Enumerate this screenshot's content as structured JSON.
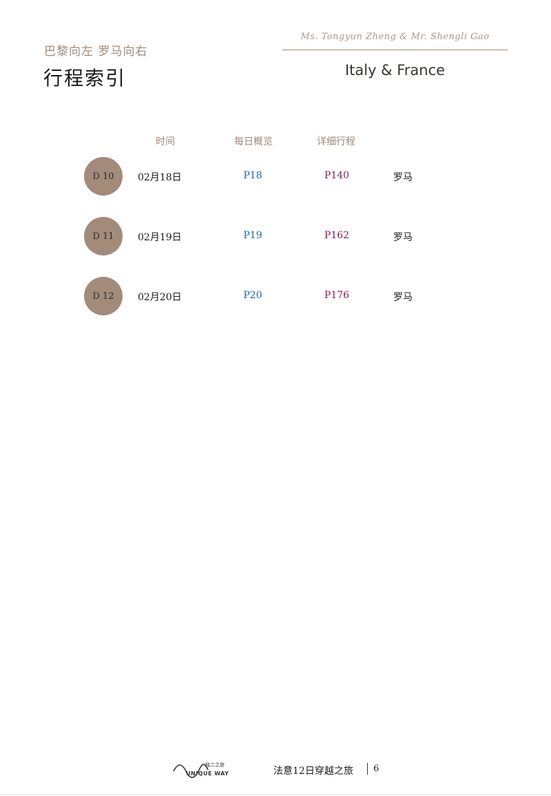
{
  "header": {
    "subtitle": "巴黎向左 罗马向右",
    "title": "行程索引",
    "authors": "Ms. Tongyun Zheng & Mr. Shengli Gao",
    "destination": "Italy & France"
  },
  "columns": {
    "time": "时间",
    "overview": "每日概览",
    "detail": "详细行程"
  },
  "rows": [
    {
      "day": "D 10",
      "date": "02月18日",
      "overview_page": "P18",
      "detail_page": "P140",
      "city": "罗马"
    },
    {
      "day": "D 11",
      "date": "02月19日",
      "overview_page": "P19",
      "detail_page": "P162",
      "city": "罗马"
    },
    {
      "day": "D 12",
      "date": "02月20日",
      "overview_page": "P20",
      "detail_page": "P176",
      "city": "罗马"
    }
  ],
  "footer": {
    "logo_zh": "独二之旅",
    "logo_en": "UNIQUE WAY",
    "title": "法意12日穿越之旅",
    "page_number": "6"
  },
  "colors": {
    "accent": "#a08a7a",
    "badge": "#a38b7b",
    "overview_link": "#1e67a8",
    "detail_link": "#8b1a5a"
  }
}
